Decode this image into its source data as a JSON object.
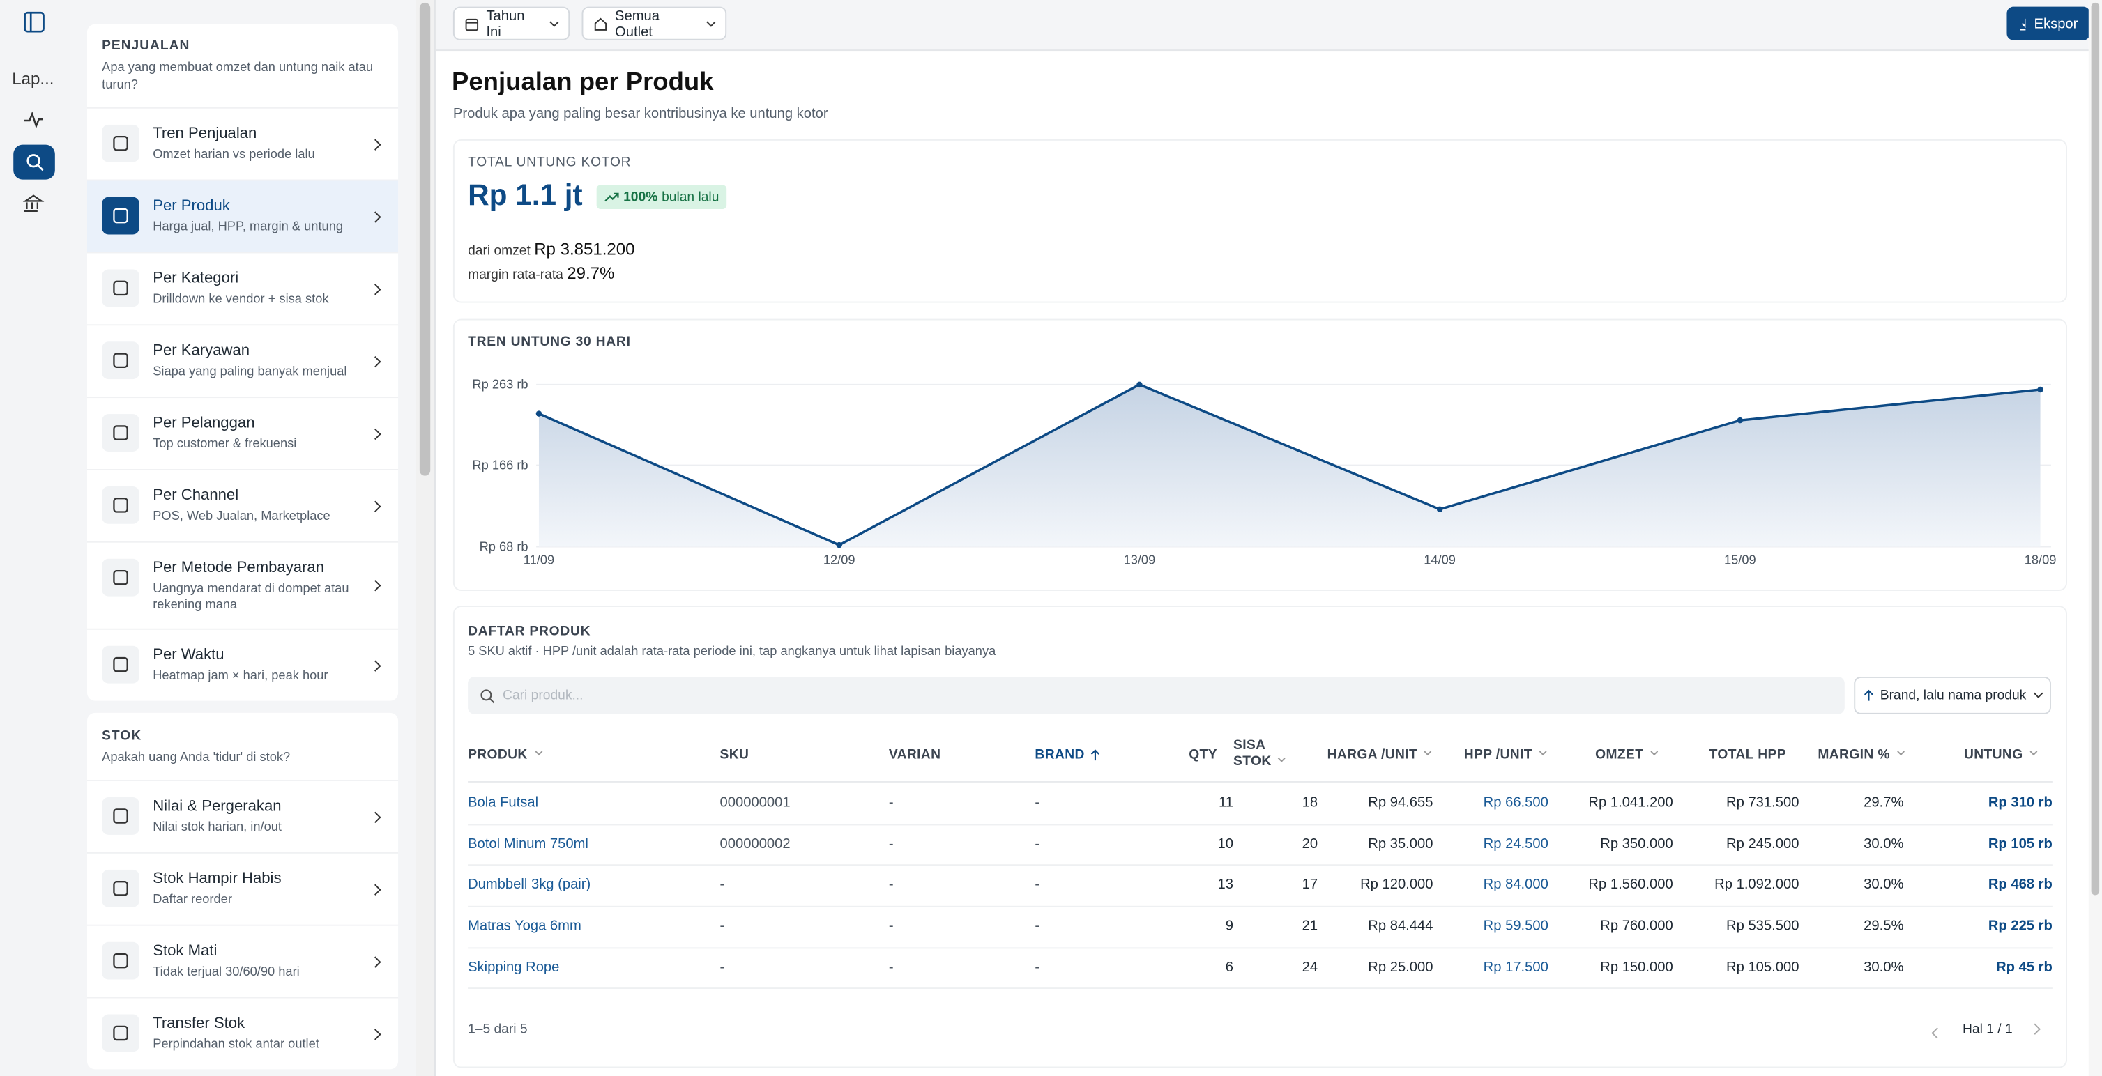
{
  "rail": {
    "label": "Lap..."
  },
  "toolbar": {
    "period": "Tahun Ini",
    "outlet": "Semua Outlet",
    "export": "Ekspor"
  },
  "sidebar": {
    "sections": [
      {
        "title": "PENJUALAN",
        "subtitle": "Apa yang membuat omzet dan untung naik atau turun?",
        "items": [
          {
            "title": "Tren Penjualan",
            "desc": "Omzet harian vs periode lalu"
          },
          {
            "title": "Per Produk",
            "desc": "Harga jual, HPP, margin & untung"
          },
          {
            "title": "Per Kategori",
            "desc": "Drilldown ke vendor + sisa stok"
          },
          {
            "title": "Per Karyawan",
            "desc": "Siapa yang paling banyak menjual"
          },
          {
            "title": "Per Pelanggan",
            "desc": "Top customer & frekuensi"
          },
          {
            "title": "Per Channel",
            "desc": "POS, Web Jualan, Marketplace"
          },
          {
            "title": "Per Metode Pembayaran",
            "desc": "Uangnya mendarat di dompet atau rekening mana"
          },
          {
            "title": "Per Waktu",
            "desc": "Heatmap jam × hari, peak hour"
          }
        ]
      },
      {
        "title": "STOK",
        "subtitle": "Apakah uang Anda 'tidur' di stok?",
        "items": [
          {
            "title": "Nilai & Pergerakan",
            "desc": "Nilai stok harian, in/out"
          },
          {
            "title": "Stok Hampir Habis",
            "desc": "Daftar reorder"
          },
          {
            "title": "Stok Mati",
            "desc": "Tidak terjual 30/60/90 hari"
          },
          {
            "title": "Transfer Stok",
            "desc": "Perpindahan stok antar outlet"
          }
        ]
      }
    ]
  },
  "page": {
    "title": "Penjualan per Produk",
    "subtitle": "Produk apa yang paling besar kontribusinya ke untung kotor"
  },
  "summary": {
    "label": "TOTAL UNTUNG KOTOR",
    "value": "Rp 1.1 jt",
    "change": "100%",
    "change_note": "bulan lalu",
    "revenue_label": "dari omzet",
    "revenue": "Rp 3.851.200",
    "margin_label": "margin rata-rata",
    "margin": "29.7%"
  },
  "chart_data": {
    "type": "line",
    "title": "TREN UNTUNG 30 HARI",
    "categories": [
      "11/09",
      "12/09",
      "13/09",
      "14/09",
      "15/09",
      "18/09"
    ],
    "values": [
      228,
      70,
      263,
      113,
      220,
      257
    ],
    "color": "#0d4a85",
    "ylim": [
      68,
      263
    ],
    "yticks": [
      {
        "value": 68,
        "label": "Rp 68 rb"
      },
      {
        "value": 166,
        "label": "Rp 166 rb"
      },
      {
        "value": 263,
        "label": "Rp 263 rb"
      }
    ],
    "grid": true
  },
  "table": {
    "title": "DAFTAR PRODUK",
    "desc": "5 SKU aktif · HPP /unit adalah rata-rata periode ini, tap angkanya untuk lihat lapisan biayanya",
    "search_placeholder": "Cari produk...",
    "sort": "Brand, lalu nama produk",
    "columns": [
      "PRODUK",
      "SKU",
      "VARIAN",
      "BRAND",
      "QTY",
      "SISA STOK",
      "HARGA /UNIT",
      "HPP /UNIT",
      "OMZET",
      "TOTAL HPP",
      "MARGIN %",
      "UNTUNG"
    ],
    "rows": [
      [
        "Bola Futsal",
        "000000001",
        "-",
        "-",
        "11",
        "18",
        "Rp 94.655",
        "Rp 66.500",
        "Rp 1.041.200",
        "Rp 731.500",
        "29.7%",
        "Rp 310 rb"
      ],
      [
        "Botol Minum 750ml",
        "000000002",
        "-",
        "-",
        "10",
        "20",
        "Rp 35.000",
        "Rp 24.500",
        "Rp 350.000",
        "Rp 245.000",
        "30.0%",
        "Rp 105 rb"
      ],
      [
        "Dumbbell 3kg (pair)",
        "-",
        "-",
        "-",
        "13",
        "17",
        "Rp 120.000",
        "Rp 84.000",
        "Rp 1.560.000",
        "Rp 1.092.000",
        "30.0%",
        "Rp 468 rb"
      ],
      [
        "Matras Yoga 6mm",
        "-",
        "-",
        "-",
        "9",
        "21",
        "Rp 84.444",
        "Rp 59.500",
        "Rp 760.000",
        "Rp 535.500",
        "29.5%",
        "Rp 225 rb"
      ],
      [
        "Skipping Rope",
        "-",
        "-",
        "-",
        "6",
        "24",
        "Rp 25.000",
        "Rp 17.500",
        "Rp 150.000",
        "Rp 105.000",
        "30.0%",
        "Rp 45 rb"
      ]
    ],
    "range": "1–5 dari 5",
    "pagination": "Hal 1 / 1"
  }
}
